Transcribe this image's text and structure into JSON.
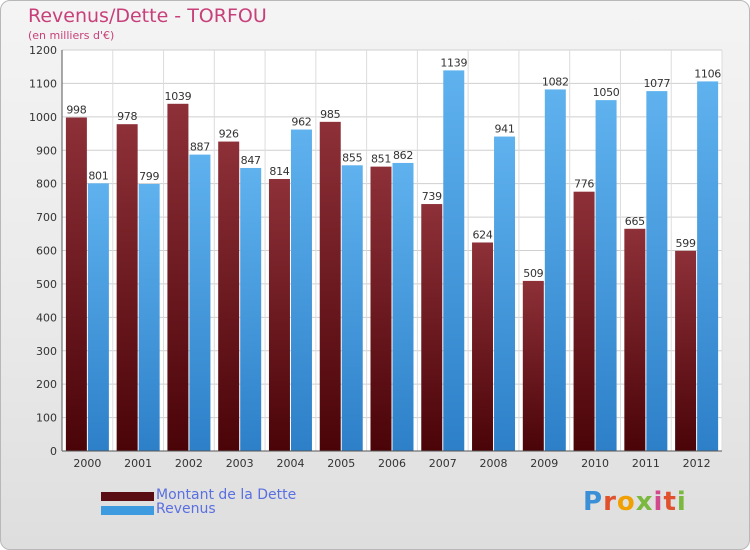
{
  "header": {
    "title": "Revenus/Dette - TORFOU",
    "subtitle": "(en milliers d'€)"
  },
  "legend": {
    "debt_label": "Montant de la Dette",
    "revenue_label": "Revenus"
  },
  "logo": {
    "text": "Proxiti"
  },
  "colors": {
    "debt": "#7a1f28",
    "revenue": "#3e9be0",
    "title": "#c8407a",
    "legend_text": "#5a6fe0"
  },
  "chart_data": {
    "type": "bar",
    "title": "Revenus/Dette - TORFOU",
    "subtitle": "(en milliers d'€)",
    "categories": [
      "2000",
      "2001",
      "2002",
      "2003",
      "2004",
      "2005",
      "2006",
      "2007",
      "2008",
      "2009",
      "2010",
      "2011",
      "2012"
    ],
    "series": [
      {
        "name": "Montant de la Dette",
        "values": [
          998,
          978,
          1039,
          926,
          814,
          985,
          851,
          739,
          624,
          509,
          776,
          665,
          599
        ]
      },
      {
        "name": "Revenus",
        "values": [
          801,
          799,
          887,
          847,
          962,
          855,
          862,
          1139,
          941,
          1082,
          1050,
          1077,
          1106
        ]
      }
    ],
    "ylim": [
      0,
      1200
    ],
    "yticks": [
      0,
      100,
      200,
      300,
      400,
      500,
      600,
      700,
      800,
      900,
      1000,
      1100,
      1200
    ],
    "grid": true,
    "legend_position": "bottom-left"
  }
}
